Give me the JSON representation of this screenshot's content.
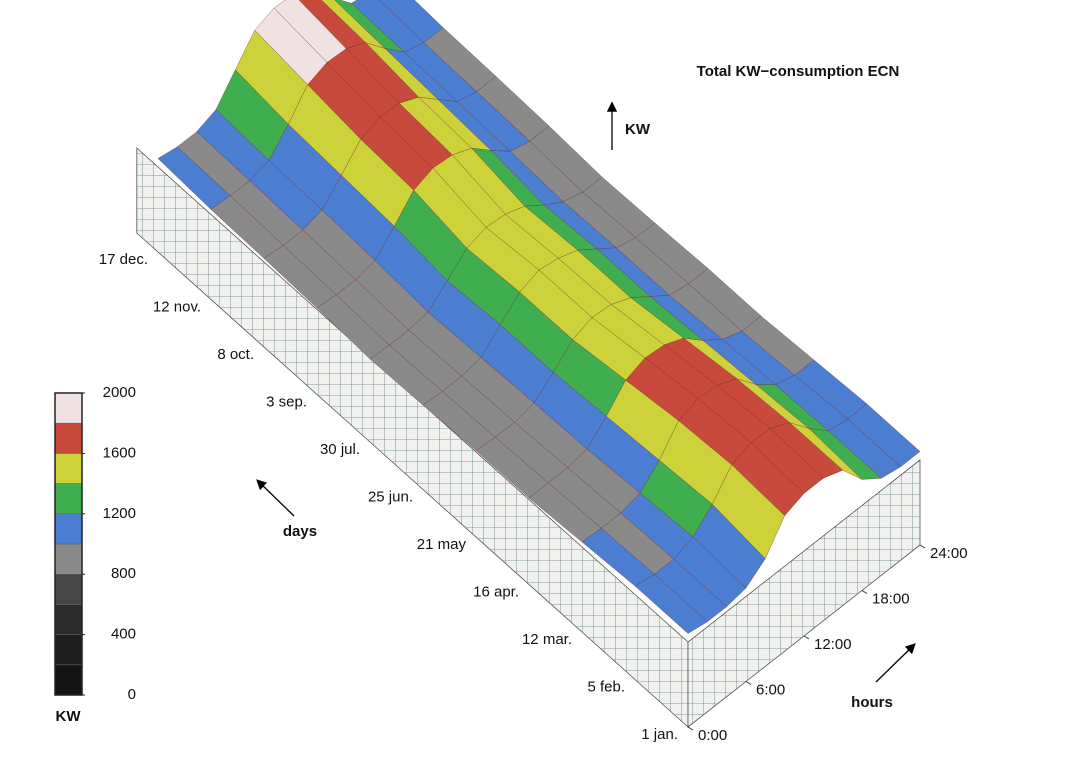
{
  "chart_data": {
    "type": "surface3d",
    "title": "Total KW−consumption ECN",
    "z_label": "KW",
    "y_label": "days",
    "x_label": "hours",
    "x": [
      0,
      2,
      4,
      6,
      8,
      10,
      12,
      14,
      16,
      18,
      20,
      22,
      24
    ],
    "xlim": [
      0,
      24
    ],
    "xticks": [
      {
        "value": 0,
        "label": "0:00"
      },
      {
        "value": 6,
        "label": "6:00"
      },
      {
        "value": 12,
        "label": "12:00"
      },
      {
        "value": 18,
        "label": "18:00"
      },
      {
        "value": 24,
        "label": "24:00"
      }
    ],
    "y_categories": [
      "1 jan.",
      "5 feb.",
      "12 mar.",
      "16 apr.",
      "21 may",
      "25 jun.",
      "30 jul.",
      "3 sep.",
      "8 oct.",
      "12 nov.",
      "17 dec."
    ],
    "z": [
      [
        1050,
        1000,
        1000,
        1050,
        1250,
        1650,
        1750,
        1750,
        1650,
        1300,
        1100,
        1050,
        1050
      ],
      [
        1050,
        1000,
        1000,
        1100,
        1350,
        1700,
        1800,
        1780,
        1650,
        1350,
        1100,
        1050,
        1050
      ],
      [
        1000,
        980,
        980,
        1050,
        1300,
        1650,
        1750,
        1720,
        1600,
        1300,
        1080,
        1000,
        1000
      ],
      [
        950,
        950,
        950,
        1000,
        1250,
        1550,
        1650,
        1620,
        1500,
        1250,
        1050,
        950,
        950
      ],
      [
        950,
        920,
        920,
        980,
        1200,
        1450,
        1550,
        1520,
        1400,
        1200,
        1000,
        950,
        950
      ],
      [
        920,
        900,
        900,
        950,
        1200,
        1450,
        1550,
        1500,
        1400,
        1200,
        1000,
        930,
        920
      ],
      [
        900,
        880,
        880,
        920,
        1150,
        1400,
        1480,
        1450,
        1350,
        1150,
        980,
        900,
        900
      ],
      [
        950,
        920,
        920,
        980,
        1250,
        1550,
        1650,
        1620,
        1500,
        1250,
        1020,
        950,
        950
      ],
      [
        980,
        950,
        950,
        1020,
        1300,
        1600,
        1700,
        1680,
        1550,
        1300,
        1050,
        980,
        980
      ],
      [
        1000,
        980,
        980,
        1050,
        1350,
        1700,
        1800,
        1780,
        1650,
        1350,
        1080,
        1000,
        1000
      ],
      [
        1050,
        1000,
        1000,
        1100,
        1450,
        1800,
        1900,
        1880,
        1700,
        1400,
        1100,
        1050,
        1050
      ]
    ],
    "zlim": [
      0,
      2000
    ],
    "colorbar": {
      "label": "KW",
      "ticks": [
        0,
        400,
        800,
        1200,
        1600,
        2000
      ],
      "levels": [
        0,
        200,
        400,
        600,
        800,
        1000,
        1200,
        1400,
        1600,
        1800,
        2000
      ],
      "colors": [
        "#141414",
        "#1e1e1e",
        "#2c2c2c",
        "#474747",
        "#8a8a8a",
        "#4b7ed1",
        "#3fae4f",
        "#cdd23a",
        "#c84a3c",
        "#f0e2e2"
      ]
    }
  }
}
